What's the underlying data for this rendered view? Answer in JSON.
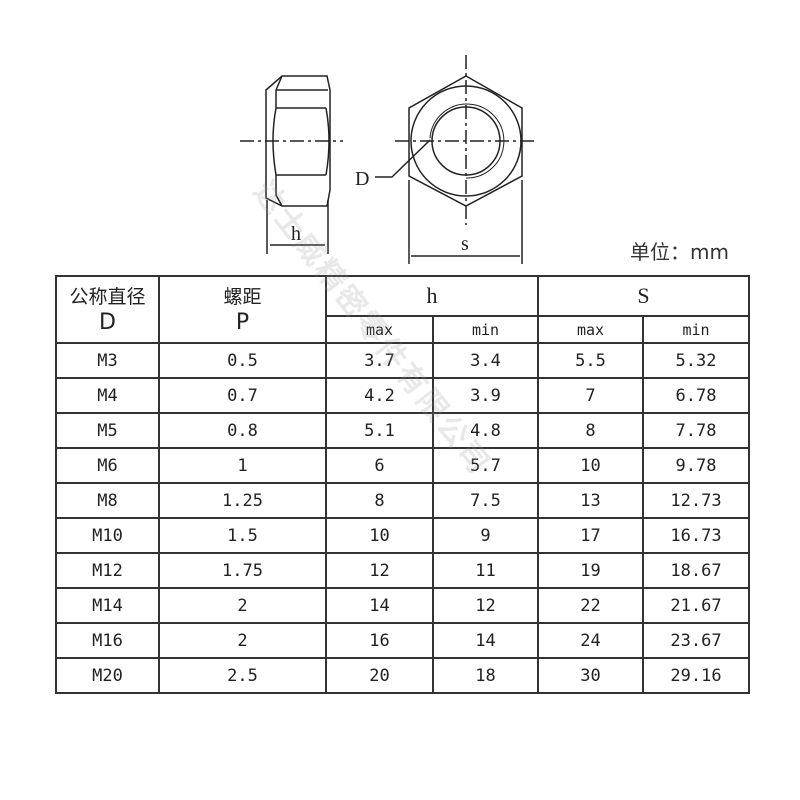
{
  "drawing": {
    "labels": {
      "h": "h",
      "s": "s",
      "d": "D"
    }
  },
  "unit_label": "单位：mm",
  "watermark": "达士威精密零件有限公司",
  "table": {
    "headers": {
      "d_cn": "公称直径",
      "d": "D",
      "p_cn": "螺距",
      "p": "P",
      "h": "h",
      "s": "S",
      "max": "max",
      "min": "min"
    },
    "rows": [
      {
        "d": "M3",
        "p": "0.5",
        "h_max": "3.7",
        "h_min": "3.4",
        "s_max": "5.5",
        "s_min": "5.32"
      },
      {
        "d": "M4",
        "p": "0.7",
        "h_max": "4.2",
        "h_min": "3.9",
        "s_max": "7",
        "s_min": "6.78"
      },
      {
        "d": "M5",
        "p": "0.8",
        "h_max": "5.1",
        "h_min": "4.8",
        "s_max": "8",
        "s_min": "7.78"
      },
      {
        "d": "M6",
        "p": "1",
        "h_max": "6",
        "h_min": "5.7",
        "s_max": "10",
        "s_min": "9.78"
      },
      {
        "d": "M8",
        "p": "1.25",
        "h_max": "8",
        "h_min": "7.5",
        "s_max": "13",
        "s_min": "12.73"
      },
      {
        "d": "M10",
        "p": "1.5",
        "h_max": "10",
        "h_min": "9",
        "s_max": "17",
        "s_min": "16.73"
      },
      {
        "d": "M12",
        "p": "1.75",
        "h_max": "12",
        "h_min": "11",
        "s_max": "19",
        "s_min": "18.67"
      },
      {
        "d": "M14",
        "p": "2",
        "h_max": "14",
        "h_min": "12",
        "s_max": "22",
        "s_min": "21.67"
      },
      {
        "d": "M16",
        "p": "2",
        "h_max": "16",
        "h_min": "14",
        "s_max": "24",
        "s_min": "23.67"
      },
      {
        "d": "M20",
        "p": "2.5",
        "h_max": "20",
        "h_min": "18",
        "s_max": "30",
        "s_min": "29.16"
      }
    ]
  }
}
